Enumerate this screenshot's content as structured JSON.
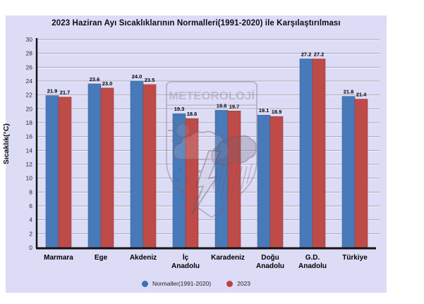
{
  "chart_data": {
    "type": "bar",
    "title": "2023 Haziran Ayı Sıcaklıklarının Normalleri(1991-2020) ile Karşılaştırılması",
    "ylabel": "Sıcaklık(°C)",
    "xlabel": "",
    "categories": [
      "Marmara",
      "Ege",
      "Akdeniz",
      "İç Anadolu",
      "Karadeniz",
      "Doğu Anadolu",
      "G.D. Anadolu",
      "Türkiye"
    ],
    "categories_multiline": [
      [
        "Marmara"
      ],
      [
        "Ege"
      ],
      [
        "Akdeniz"
      ],
      [
        "İç",
        "Anadolu"
      ],
      [
        "Karadeniz"
      ],
      [
        "Doğu",
        "Anadolu"
      ],
      [
        "G.D.",
        "Anadolu"
      ],
      [
        "Türkiye"
      ]
    ],
    "series": [
      {
        "name": "Normaller(1991-2020)",
        "color": "#4879B8",
        "border": "#3c6699",
        "values": [
          21.9,
          23.6,
          24.0,
          19.3,
          19.8,
          19.1,
          27.2,
          21.8
        ]
      },
      {
        "name": "2023",
        "color": "#BE4B48",
        "border": "#9e3d3b",
        "values": [
          21.7,
          23.0,
          23.5,
          18.6,
          19.7,
          18.9,
          27.2,
          21.4
        ]
      }
    ],
    "ylim": [
      0,
      30
    ],
    "ytick_step": 2,
    "grid": true,
    "legend_position": "bottom",
    "value_labels_shown": true
  },
  "watermark": {
    "text": "METEOROLOJİ"
  },
  "colors": {
    "panel_bg": "#dcdcf6",
    "gridline": "#a6a6b8",
    "gridline_highlight": "#ffffff",
    "axis": "#141414",
    "tick_text": "#2e2e2e",
    "value_label_text": "#000000",
    "category_text": "#000000",
    "legend_blue": "#3f6fb5",
    "legend_red": "#c0403d"
  }
}
